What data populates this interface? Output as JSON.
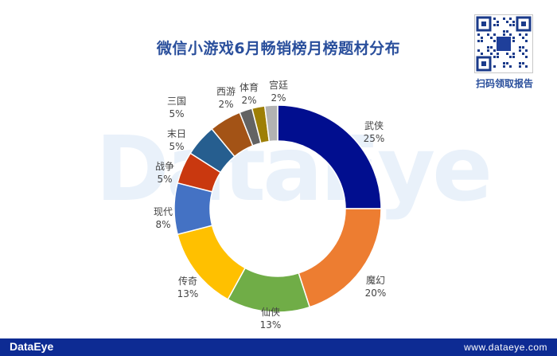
{
  "chart_data": {
    "type": "donut",
    "title": "微信小游戏6月畅销榜月榜题材分布",
    "categories": [
      "武侠",
      "魔幻",
      "仙侠",
      "传奇",
      "现代",
      "战争",
      "末日",
      "三国",
      "西游",
      "体育",
      "宫廷"
    ],
    "values": [
      25,
      20,
      13,
      13,
      8,
      5,
      5,
      5,
      2,
      2,
      2
    ],
    "value_labels": [
      "25%",
      "20%",
      "13%",
      "13%",
      "8%",
      "5%",
      "5%",
      "5%",
      "2%",
      "2%",
      "2%"
    ],
    "colors": [
      "#010e8f",
      "#ed7d31",
      "#70ad47",
      "#ffc000",
      "#4472c4",
      "#c9380f",
      "#265e8f",
      "#a35316",
      "#636363",
      "#9e7f06",
      "#b2b2b2"
    ],
    "legend": "none",
    "start_angle": "top, clockwise"
  },
  "watermark": "DataEye",
  "qr": {
    "caption": "扫码领取报告"
  },
  "footer": {
    "brand": "DataEye",
    "website": "www.dataeye.com"
  }
}
